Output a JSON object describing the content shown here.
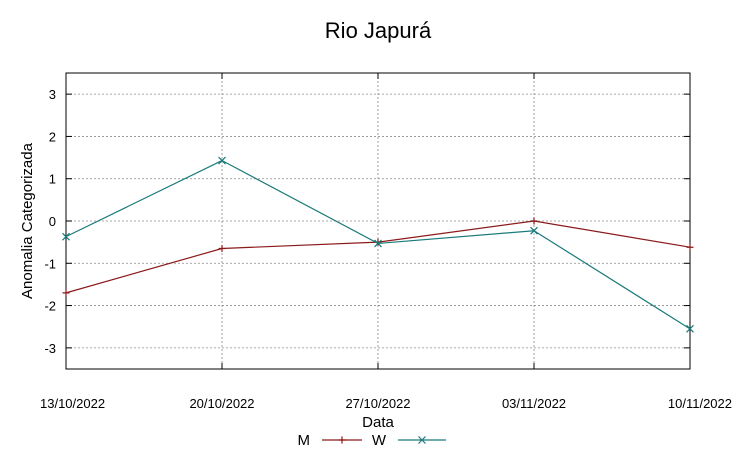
{
  "chart_data": {
    "type": "line",
    "title": "Rio Japurá",
    "xlabel": "Data",
    "ylabel": "Anomalia Categorizada",
    "categories": [
      "13/10/2022",
      "20/10/2022",
      "27/10/2022",
      "03/11/2022",
      "10/11/2022"
    ],
    "yticks": [
      "-3",
      "-2",
      "-1",
      "0",
      "1",
      "2",
      "3"
    ],
    "ylim": [
      -3.5,
      3.5
    ],
    "grid": true,
    "legend_position": "bottom",
    "series": [
      {
        "name": "M",
        "marker": "+",
        "color": "#8b1a1a",
        "values": [
          -1.7,
          -0.65,
          -0.5,
          0.0,
          -0.62
        ]
      },
      {
        "name": "W",
        "marker": "x",
        "color": "#1a7a7a",
        "values": [
          -0.37,
          1.43,
          -0.53,
          -0.23,
          -2.55
        ]
      }
    ]
  }
}
